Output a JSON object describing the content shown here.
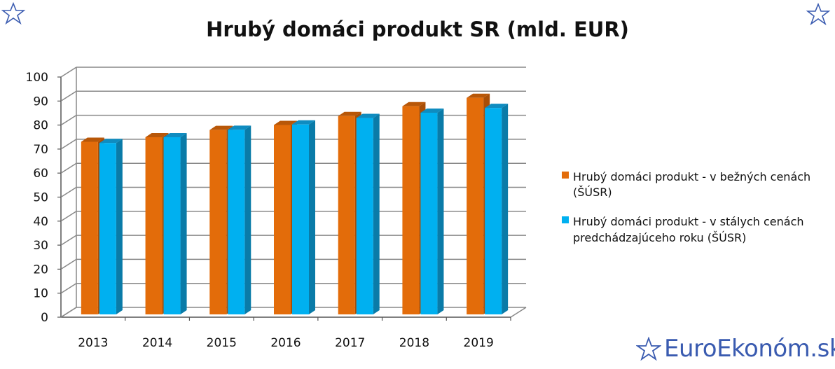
{
  "chart_data": {
    "type": "bar",
    "title": "Hrubý domáci produkt SR (mld. EUR)",
    "categories": [
      "2013",
      "2014",
      "2015",
      "2016",
      "2017",
      "2018",
      "2019"
    ],
    "series": [
      {
        "name": "Hrubý domáci produkt - v bežných cenách (ŠÚSR)",
        "values": [
          74.2,
          76.1,
          79.1,
          81.2,
          84.9,
          89.0,
          92.5
        ],
        "color": "#e36c0a",
        "side_color": "#a84e07",
        "top_color": "#b85708"
      },
      {
        "name": "Hrubý domáci produkt - v stálych cenách predchádzajúceho roku (ŠÚSR)",
        "values": [
          73.7,
          76.1,
          79.2,
          81.4,
          84.1,
          86.3,
          88.3
        ],
        "color": "#00b0f0",
        "side_color": "#0a7ba8",
        "top_color": "#0f8cc0"
      }
    ],
    "yticks": [
      "0",
      "10",
      "20",
      "30",
      "40",
      "50",
      "60",
      "70",
      "80",
      "90",
      "100"
    ],
    "ylim": [
      0,
      100
    ],
    "grid": true,
    "legend_position": "right"
  },
  "legend": {
    "item1_line1": "Hrubý domáci produkt - v bežných cenách",
    "item1_line2": "(ŠÚSR)",
    "item2_line1": "Hrubý domáci produkt - v stálych cenách",
    "item2_line2": "predchádzajúceho roku (ŠÚSR)"
  },
  "branding": {
    "text": "EuroEkonóm.sk",
    "color": "#3a5bb0"
  }
}
